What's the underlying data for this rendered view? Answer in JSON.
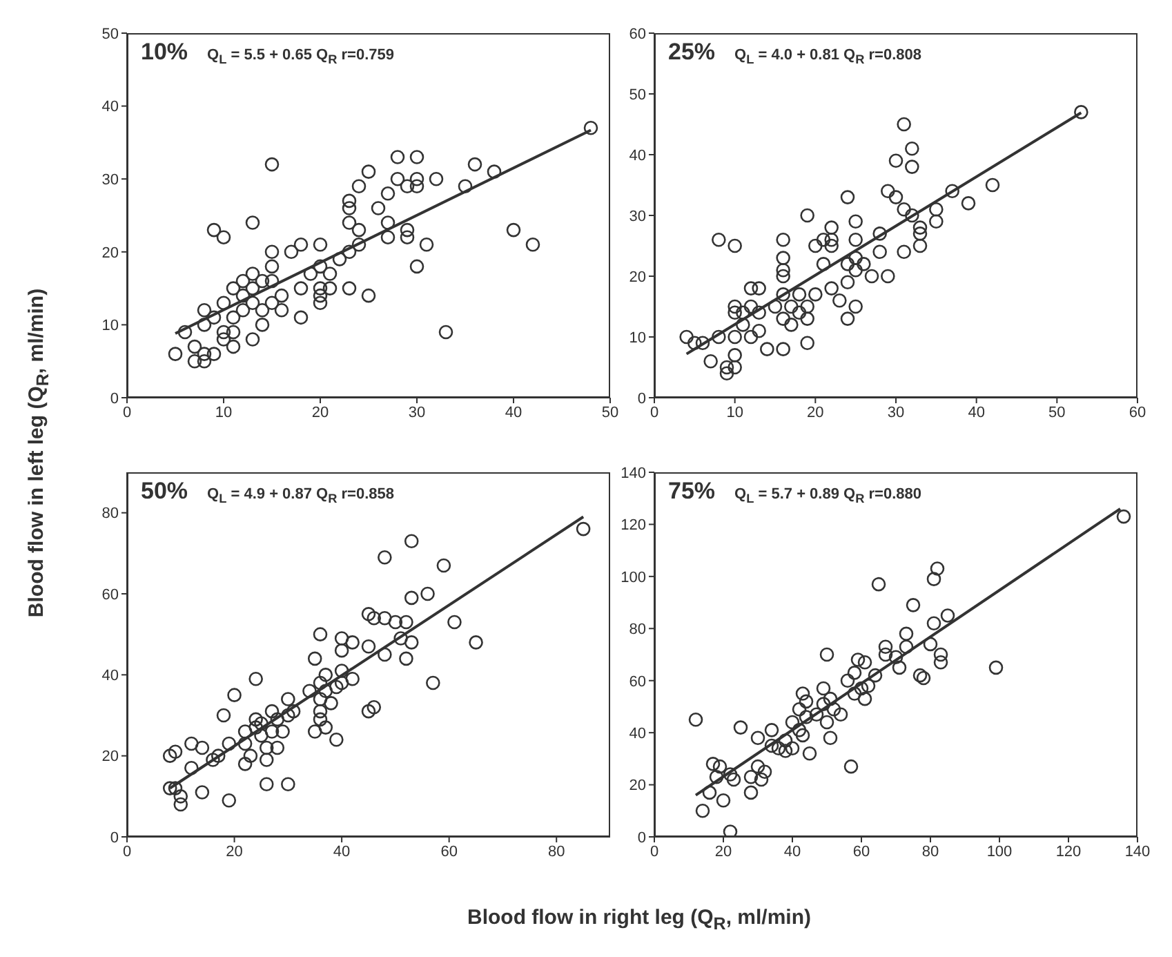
{
  "chart_data": [
    {
      "type": "scatter",
      "xlabel": "Blood flow in right leg (Q$_{R}$, ml/min)",
      "ylabel": "Blood flow in left leg (Q$_{R}$, ml/min)",
      "annotations": [
        "10%",
        "Q$_{L}$ = 5.5 + 0.65 Q$_{R}$  r=0.759"
      ],
      "xlim": [
        0,
        50
      ],
      "xticks": [
        0,
        10,
        20,
        30,
        40,
        50
      ],
      "ylim": [
        0,
        50
      ],
      "yticks": [
        0,
        10,
        20,
        30,
        40,
        50
      ],
      "series": [
        {
          "type": "scatter",
          "marker": "circle",
          "color": "#333333",
          "x": [
            5,
            6,
            7,
            7,
            8,
            8,
            8,
            8,
            9,
            9,
            9,
            10,
            10,
            10,
            10,
            11,
            11,
            11,
            11,
            12,
            12,
            12,
            13,
            13,
            13,
            13,
            13,
            14,
            14,
            14,
            15,
            15,
            15,
            15,
            15,
            16,
            16,
            17,
            18,
            18,
            18,
            19,
            20,
            20,
            20,
            20,
            20,
            21,
            21,
            22,
            23,
            23,
            23,
            23,
            23,
            24,
            24,
            24,
            25,
            25,
            26,
            27,
            27,
            27,
            28,
            28,
            29,
            29,
            29,
            30,
            30,
            30,
            30,
            31,
            32,
            33,
            35,
            36,
            38,
            40,
            42,
            48
          ],
          "values": [
            6,
            9,
            7,
            5,
            5,
            6,
            10,
            12,
            6,
            11,
            23,
            22,
            13,
            9,
            8,
            15,
            11,
            9,
            7,
            12,
            14,
            16,
            17,
            15,
            13,
            8,
            24,
            16,
            12,
            10,
            32,
            20,
            18,
            16,
            13,
            14,
            12,
            20,
            21,
            15,
            11,
            17,
            21,
            18,
            15,
            14,
            13,
            17,
            15,
            19,
            27,
            26,
            24,
            20,
            15,
            29,
            23,
            21,
            31,
            14,
            26,
            28,
            24,
            22,
            33,
            30,
            29,
            23,
            22,
            33,
            30,
            29,
            18,
            21,
            30,
            9,
            29,
            32,
            31,
            23,
            21,
            37
          ]
        },
        {
          "type": "line",
          "color": "#333333",
          "x": [
            5,
            48
          ],
          "values": [
            8.8,
            36.7
          ]
        }
      ]
    },
    {
      "type": "scatter",
      "annotations": [
        "25%",
        "Q$_{L}$ = 4.0 + 0.81 Q$_{R}$  r=0.808"
      ],
      "xlim": [
        0,
        60
      ],
      "xticks": [
        0,
        10,
        20,
        30,
        40,
        50,
        60
      ],
      "ylim": [
        0,
        60
      ],
      "yticks": [
        0,
        10,
        20,
        30,
        40,
        50,
        60
      ],
      "series": [
        {
          "type": "scatter",
          "marker": "circle",
          "color": "#333333",
          "x": [
            4,
            5,
            6,
            7,
            8,
            8,
            9,
            9,
            10,
            10,
            10,
            10,
            10,
            10,
            11,
            11,
            12,
            12,
            12,
            13,
            13,
            13,
            14,
            15,
            16,
            16,
            16,
            16,
            16,
            16,
            16,
            17,
            17,
            18,
            18,
            19,
            19,
            19,
            19,
            20,
            20,
            21,
            21,
            22,
            22,
            22,
            22,
            23,
            24,
            24,
            24,
            24,
            25,
            25,
            25,
            25,
            25,
            26,
            27,
            28,
            28,
            29,
            29,
            30,
            30,
            31,
            31,
            31,
            32,
            32,
            32,
            33,
            33,
            33,
            35,
            35,
            37,
            39,
            42,
            53
          ],
          "values": [
            10,
            9,
            9,
            6,
            10,
            26,
            5,
            4,
            25,
            15,
            14,
            10,
            7,
            5,
            14,
            12,
            18,
            15,
            10,
            18,
            14,
            11,
            8,
            15,
            26,
            23,
            21,
            20,
            17,
            13,
            8,
            15,
            12,
            17,
            14,
            30,
            15,
            13,
            9,
            25,
            17,
            22,
            26,
            28,
            26,
            25,
            18,
            16,
            33,
            22,
            19,
            13,
            29,
            26,
            23,
            21,
            15,
            22,
            20,
            27,
            24,
            34,
            20,
            39,
            33,
            45,
            31,
            24,
            41,
            38,
            30,
            28,
            27,
            25,
            31,
            29,
            34,
            32,
            35,
            47
          ]
        },
        {
          "type": "line",
          "color": "#333333",
          "x": [
            4,
            53
          ],
          "values": [
            7.2,
            46.9
          ]
        }
      ]
    },
    {
      "type": "scatter",
      "annotations": [
        "50%",
        "Q$_{L}$ = 4.9 + 0.87 Q$_{R}$  r=0.858"
      ],
      "xlim": [
        0,
        90
      ],
      "xticks": [
        0,
        20,
        40,
        60,
        80
      ],
      "ylim": [
        0,
        90
      ],
      "yticks": [
        0,
        20,
        40,
        60,
        80
      ],
      "series": [
        {
          "type": "scatter",
          "marker": "circle",
          "color": "#333333",
          "x": [
            8,
            8,
            9,
            9,
            10,
            10,
            12,
            12,
            14,
            14,
            16,
            17,
            18,
            19,
            19,
            20,
            22,
            22,
            22,
            23,
            24,
            24,
            24,
            25,
            25,
            26,
            26,
            26,
            27,
            27,
            28,
            28,
            29,
            30,
            30,
            30,
            31,
            34,
            35,
            35,
            36,
            36,
            36,
            36,
            36,
            37,
            37,
            37,
            38,
            39,
            39,
            40,
            40,
            40,
            40,
            42,
            42,
            45,
            45,
            45,
            46,
            46,
            48,
            48,
            48,
            50,
            51,
            52,
            52,
            53,
            53,
            53,
            56,
            57,
            59,
            61,
            65,
            85
          ],
          "values": [
            20,
            12,
            21,
            12,
            10,
            8,
            23,
            17,
            22,
            11,
            19,
            20,
            30,
            23,
            9,
            35,
            26,
            23,
            18,
            20,
            39,
            29,
            27,
            28,
            25,
            22,
            19,
            13,
            31,
            26,
            29,
            22,
            26,
            34,
            30,
            13,
            31,
            36,
            44,
            26,
            50,
            38,
            34,
            31,
            29,
            40,
            36,
            27,
            33,
            37,
            24,
            49,
            46,
            41,
            38,
            48,
            39,
            55,
            47,
            31,
            54,
            32,
            69,
            54,
            45,
            53,
            49,
            53,
            44,
            73,
            59,
            48,
            60,
            38,
            67,
            53,
            48,
            76
          ]
        },
        {
          "type": "line",
          "color": "#333333",
          "x": [
            8,
            85
          ],
          "values": [
            12,
            79
          ]
        }
      ]
    },
    {
      "type": "scatter",
      "annotations": [
        "75%",
        "Q$_{L}$ = 5.7 + 0.89 Q$_{R}$  r=0.880"
      ],
      "xlim": [
        0,
        140
      ],
      "xticks": [
        0,
        20,
        40,
        60,
        80,
        100,
        120,
        140
      ],
      "ylim": [
        0,
        140
      ],
      "yticks": [
        0,
        20,
        40,
        60,
        80,
        100,
        120,
        140
      ],
      "series": [
        {
          "type": "scatter",
          "marker": "circle",
          "color": "#333333",
          "x": [
            12,
            14,
            16,
            17,
            18,
            19,
            20,
            22,
            22,
            23,
            25,
            28,
            28,
            30,
            30,
            31,
            32,
            34,
            34,
            36,
            38,
            38,
            40,
            40,
            42,
            42,
            43,
            43,
            44,
            44,
            45,
            47,
            49,
            49,
            50,
            50,
            51,
            51,
            52,
            54,
            56,
            57,
            58,
            58,
            59,
            60,
            61,
            61,
            62,
            64,
            65,
            67,
            67,
            70,
            71,
            73,
            73,
            75,
            77,
            78,
            80,
            81,
            81,
            82,
            83,
            83,
            85,
            99,
            136
          ],
          "values": [
            45,
            10,
            17,
            28,
            23,
            27,
            14,
            2,
            24,
            22,
            42,
            23,
            17,
            38,
            27,
            22,
            25,
            41,
            35,
            34,
            37,
            33,
            34,
            44,
            49,
            41,
            55,
            39,
            52,
            46,
            32,
            47,
            57,
            51,
            70,
            44,
            53,
            38,
            49,
            47,
            60,
            27,
            55,
            63,
            68,
            57,
            53,
            67,
            58,
            62,
            97,
            73,
            70,
            69,
            65,
            78,
            73,
            89,
            62,
            61,
            74,
            99,
            82,
            103,
            70,
            67,
            85,
            65,
            123
          ]
        },
        {
          "type": "line",
          "color": "#333333",
          "x": [
            12,
            135
          ],
          "values": [
            16,
            126
          ]
        }
      ]
    }
  ]
}
